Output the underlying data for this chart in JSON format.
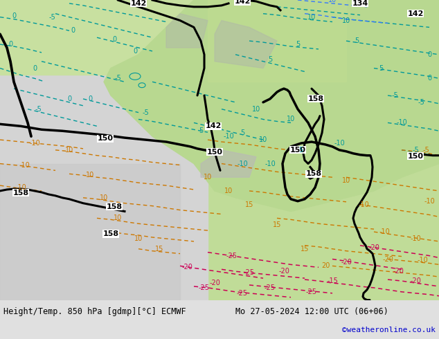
{
  "title_left": "Height/Temp. 850 hPa [gdmp][°C] ECMWF",
  "title_right": "Mo 27-05-2024 12:00 UTC (06+06)",
  "credit": "©weatheronline.co.uk",
  "fig_width": 6.34,
  "fig_height": 4.9,
  "dpi": 100,
  "label_fontsize": 8.5,
  "credit_fontsize": 8,
  "credit_color": "#0000cc",
  "colors": {
    "bg_light_gray": "#e8e8e8",
    "map_light_green": "#c8e6a0",
    "map_darker_green": "#a0c870",
    "map_gray": "#c0c0c0",
    "map_white_gray": "#d8d8d8",
    "black": "#000000",
    "cyan_contour": "#00aaaa",
    "orange_contour": "#dd8800",
    "red_contour": "#cc0055",
    "blue_contour": "#4488ff",
    "bottom_bar": "#e0e0e0"
  }
}
